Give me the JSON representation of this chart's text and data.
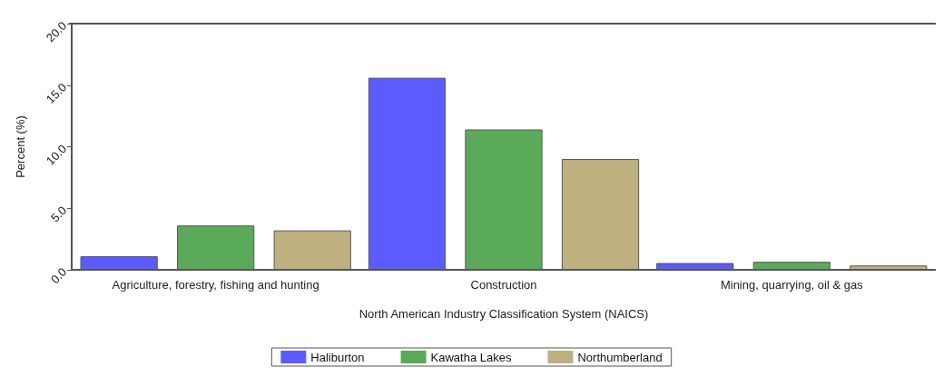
{
  "chart_data": {
    "type": "bar",
    "xlabel": "North American Industry Classification System (NAICS)",
    "ylabel": "Percent (%)",
    "categories": [
      "Agriculture, forestry, fishing and hunting",
      "Construction",
      "Mining, quarrying, oil & gas"
    ],
    "series": [
      {
        "name": "Haliburton",
        "color": "#5b5bff",
        "values": [
          1.1,
          15.6,
          0.55
        ]
      },
      {
        "name": "Kawatha Lakes",
        "color": "#5aaa5a",
        "values": [
          3.6,
          11.4,
          0.65
        ]
      },
      {
        "name": "Northumberland",
        "color": "#bfb080",
        "values": [
          3.2,
          9.0,
          0.35
        ]
      }
    ],
    "ylim": [
      0,
      20
    ],
    "yticks": [
      {
        "value": 0,
        "label": "0.0"
      },
      {
        "value": 5,
        "label": "5.0"
      },
      {
        "value": 10,
        "label": "10.0"
      },
      {
        "value": 15,
        "label": "15.0"
      },
      {
        "value": 20,
        "label": "20.0"
      }
    ],
    "grid": false,
    "legend": "bottom"
  }
}
